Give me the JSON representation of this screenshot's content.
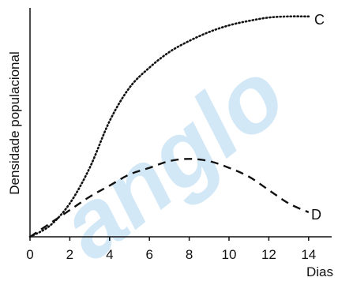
{
  "chart_data": {
    "type": "line",
    "title": "",
    "xlabel": "Dias",
    "ylabel": "Densidade populacional",
    "xlim": [
      0,
      14.6
    ],
    "ylim": [
      0,
      1.0
    ],
    "x_ticks": [
      0,
      2,
      4,
      6,
      8,
      10,
      12,
      14
    ],
    "y_ticks_shown": false,
    "grid": false,
    "legend": "none",
    "series": [
      {
        "name": "C",
        "style": "dotted",
        "color": "#111111",
        "x": [
          0,
          1,
          2,
          3,
          4,
          5,
          6,
          7,
          8,
          9,
          10,
          11,
          12,
          13,
          14
        ],
        "y": [
          0,
          0.05,
          0.15,
          0.31,
          0.52,
          0.67,
          0.76,
          0.83,
          0.88,
          0.92,
          0.95,
          0.97,
          0.985,
          0.99,
          0.99
        ]
      },
      {
        "name": "D",
        "style": "dashed",
        "color": "#111111",
        "x": [
          0,
          1,
          2,
          3,
          4,
          5,
          6,
          7,
          8,
          9,
          10,
          11,
          12,
          13,
          14
        ],
        "y": [
          0,
          0.06,
          0.12,
          0.18,
          0.23,
          0.28,
          0.31,
          0.34,
          0.35,
          0.34,
          0.31,
          0.27,
          0.21,
          0.15,
          0.11
        ]
      }
    ],
    "watermark": {
      "text": "anglo",
      "color": "#d3e8f7"
    }
  }
}
